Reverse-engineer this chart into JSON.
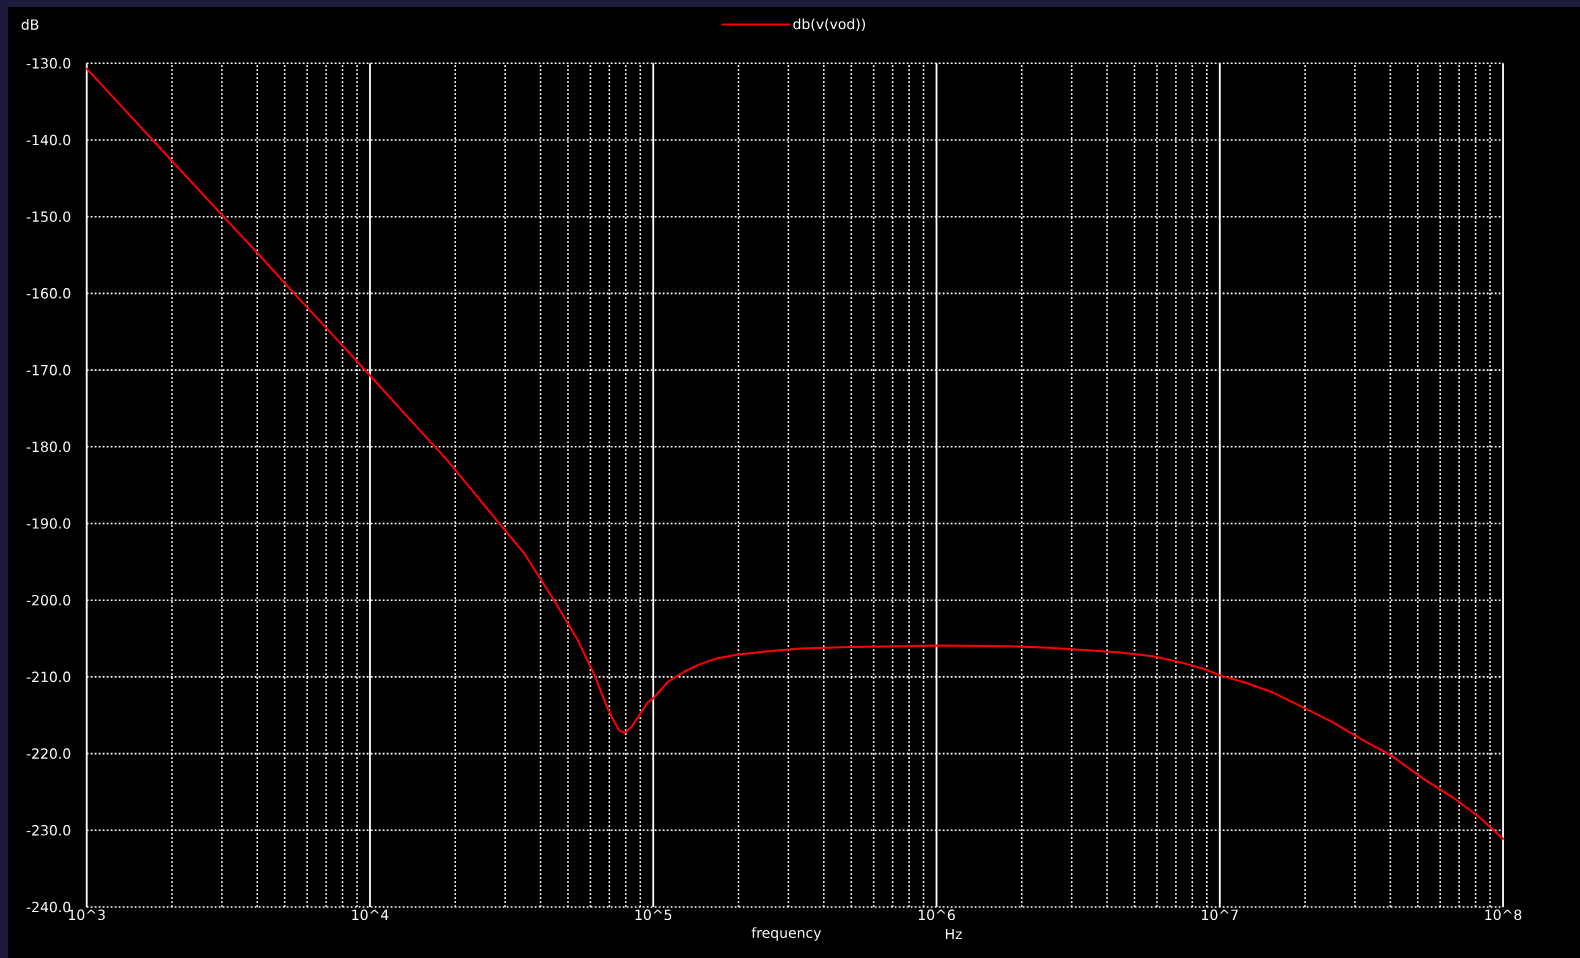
{
  "chart_data": {
    "type": "line",
    "xlabel": "frequency",
    "ylabel": "dB",
    "annotations": [
      "Hz"
    ],
    "x": [
      1000,
      1480,
      2020,
      2990,
      4090,
      5430,
      7430,
      10000,
      13800,
      18700,
      27900,
      35200,
      44500,
      54300,
      62100,
      68500,
      72400,
      75900,
      79300,
      83800,
      95700,
      100000,
      113000,
      129000,
      145000,
      167000,
      197000,
      251000,
      330000,
      494000,
      748000,
      1000000,
      1780000,
      2490000,
      3300000,
      4380000,
      5810000,
      7430000,
      8870000,
      10000000,
      12200000,
      15100000,
      19300000,
      24700000,
      31600000,
      40500000,
      51900000,
      66400000,
      82000000,
      100000000
    ],
    "series": [
      {
        "name": "db(v(vod))",
        "color": "#ff0000",
        "values": [
          -130.7,
          -137.5,
          -142.9,
          -149.7,
          -155.1,
          -160.1,
          -165.5,
          -170.7,
          -176.4,
          -181.7,
          -189.5,
          -194.0,
          -199.9,
          -205.3,
          -209.8,
          -213.8,
          -215.7,
          -217.0,
          -217.3,
          -216.5,
          -213.3,
          -212.8,
          -210.6,
          -209.3,
          -208.4,
          -207.6,
          -207.1,
          -206.7,
          -206.3,
          -206.1,
          -206.0,
          -205.9,
          -206.0,
          -206.2,
          -206.5,
          -206.8,
          -207.3,
          -208.2,
          -209.0,
          -209.8,
          -210.7,
          -211.9,
          -213.8,
          -215.8,
          -218.1,
          -220.3,
          -223.2,
          -225.7,
          -228.2,
          -231.1
        ]
      }
    ],
    "log": "x",
    "xlim": [
      1000,
      100000000
    ],
    "ylim": [
      -240,
      -130
    ],
    "xticks": [
      {
        "value": 1000,
        "label": "10^3"
      },
      {
        "value": 10000,
        "label": "10^4"
      },
      {
        "value": 100000,
        "label": "10^5"
      },
      {
        "value": 1000000,
        "label": "10^6"
      },
      {
        "value": 10000000,
        "label": "10^7"
      },
      {
        "value": 100000000,
        "label": "10^8"
      }
    ],
    "yticks": [
      {
        "value": -240,
        "label": "-240.0"
      },
      {
        "value": -230,
        "label": "-230.0"
      },
      {
        "value": -220,
        "label": "-220.0"
      },
      {
        "value": -210,
        "label": "-210.0"
      },
      {
        "value": -200,
        "label": "-200.0"
      },
      {
        "value": -190,
        "label": "-190.0"
      },
      {
        "value": -180,
        "label": "-180.0"
      },
      {
        "value": -170,
        "label": "-170.0"
      },
      {
        "value": -160,
        "label": "-160.0"
      },
      {
        "value": -150,
        "label": "-150.0"
      },
      {
        "value": -140,
        "label": "-140.0"
      },
      {
        "value": -130,
        "label": "-130.0"
      }
    ],
    "grid": true,
    "legend": "top",
    "marker": "none",
    "line_style": "solid"
  }
}
